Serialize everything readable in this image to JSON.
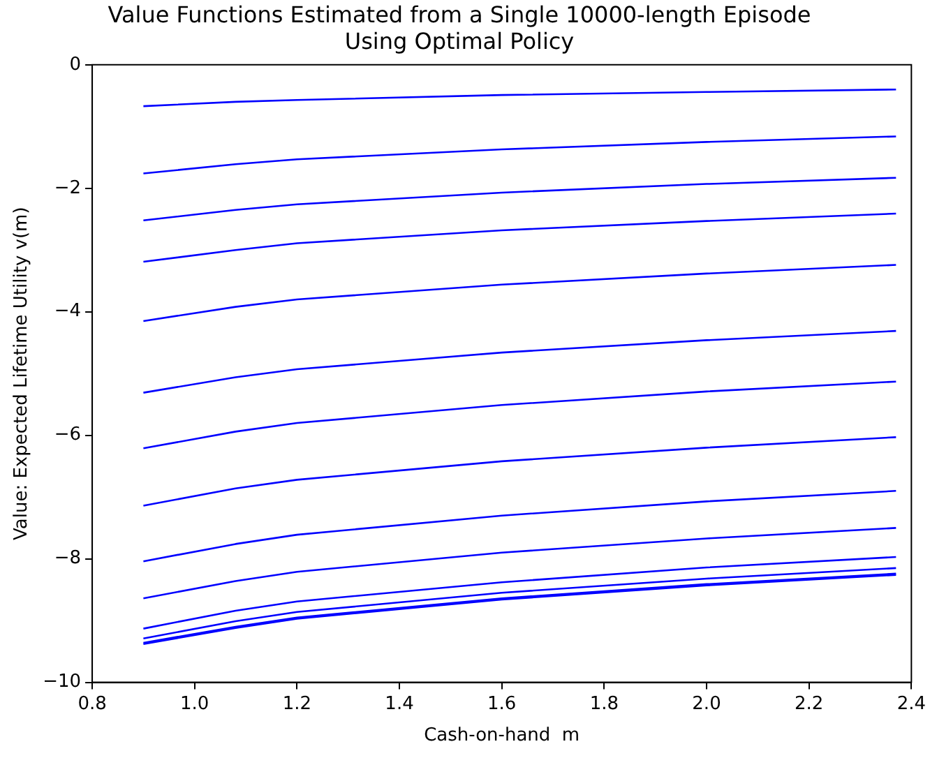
{
  "chart_data": {
    "type": "line",
    "title": "Value Functions Estimated from a Single 10000-length Episode\nUsing Optimal Policy",
    "xlabel": "Cash-on-hand  m",
    "ylabel": "Value: Expected Lifetime Utility v(m)",
    "x": [
      0.9,
      1.08,
      1.2,
      1.6,
      2.0,
      2.37
    ],
    "series": [
      {
        "color": "#0000ff",
        "values": [
          -0.67,
          -0.6,
          -0.57,
          -0.49,
          -0.44,
          -0.4
        ]
      },
      {
        "color": "#0000ff",
        "values": [
          -1.76,
          -1.61,
          -1.53,
          -1.37,
          -1.25,
          -1.16
        ]
      },
      {
        "color": "#0000ff",
        "values": [
          -2.52,
          -2.35,
          -2.26,
          -2.07,
          -1.93,
          -1.83
        ]
      },
      {
        "color": "#0000ff",
        "values": [
          -3.19,
          -3.0,
          -2.89,
          -2.68,
          -2.53,
          -2.41
        ]
      },
      {
        "color": "#0000ff",
        "values": [
          -4.15,
          -3.92,
          -3.8,
          -3.56,
          -3.38,
          -3.24
        ]
      },
      {
        "color": "#0000ff",
        "values": [
          -5.31,
          -5.06,
          -4.93,
          -4.66,
          -4.46,
          -4.31
        ]
      },
      {
        "color": "#0000ff",
        "values": [
          -6.21,
          -5.94,
          -5.8,
          -5.51,
          -5.29,
          -5.13
        ]
      },
      {
        "color": "#0000ff",
        "values": [
          -7.14,
          -6.86,
          -6.72,
          -6.42,
          -6.2,
          -6.03
        ]
      },
      {
        "color": "#0000ff",
        "values": [
          -8.04,
          -7.76,
          -7.61,
          -7.3,
          -7.07,
          -6.9
        ]
      },
      {
        "color": "#0000ff",
        "values": [
          -8.64,
          -8.36,
          -8.21,
          -7.9,
          -7.67,
          -7.5
        ]
      },
      {
        "color": "#0000ff",
        "values": [
          -9.13,
          -8.84,
          -8.69,
          -8.38,
          -8.14,
          -7.97
        ]
      },
      {
        "color": "#0000ff",
        "values": [
          -9.29,
          -9.01,
          -8.86,
          -8.55,
          -8.32,
          -8.15
        ]
      },
      {
        "color": "#0000ff",
        "values": [
          -9.36,
          -9.1,
          -8.95,
          -8.64,
          -8.41,
          -8.24
        ]
      },
      {
        "color": "#0000ff",
        "values": [
          -9.38,
          -9.12,
          -8.97,
          -8.66,
          -8.43,
          -8.26
        ]
      }
    ],
    "xlim": [
      0.8,
      2.4
    ],
    "ylim": [
      -10,
      0
    ],
    "xticks": [
      {
        "value": 0.8,
        "label": "0.8"
      },
      {
        "value": 1,
        "label": "1.0"
      },
      {
        "value": 1.2,
        "label": "1.2"
      },
      {
        "value": 1.4,
        "label": "1.4"
      },
      {
        "value": 1.6,
        "label": "1.6"
      },
      {
        "value": 1.8,
        "label": "1.8"
      },
      {
        "value": 2,
        "label": "2.0"
      },
      {
        "value": 2.2,
        "label": "2.2"
      },
      {
        "value": 2.4,
        "label": "2.4"
      }
    ],
    "yticks": [
      {
        "value": -10,
        "label": "−10"
      },
      {
        "value": -8,
        "label": "−8"
      },
      {
        "value": -6,
        "label": "−6"
      },
      {
        "value": -4,
        "label": "−4"
      },
      {
        "value": -2,
        "label": "−2"
      },
      0
    ],
    "legend": false,
    "grid": false,
    "marker": "none",
    "line_style": "solid"
  }
}
